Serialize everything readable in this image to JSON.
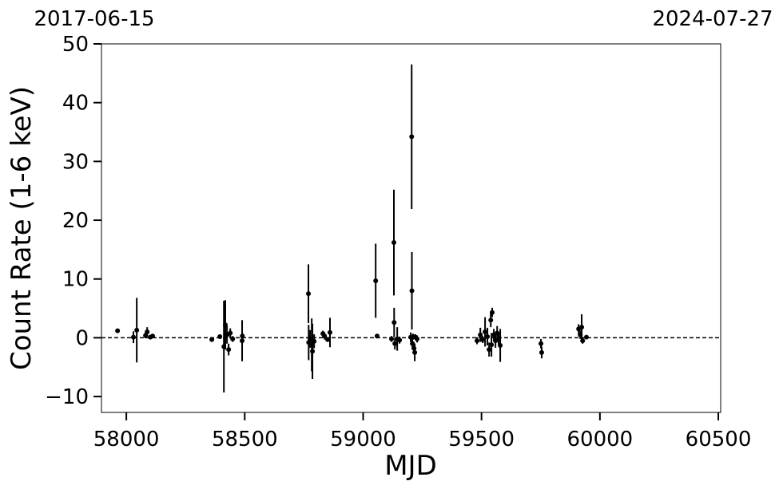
{
  "chart_data": {
    "type": "errorbar",
    "xlabel": "MJD",
    "ylabel": "Count Rate (1-6 keV)",
    "top_left_label": "2017-06-15",
    "top_right_label": "2024-07-27",
    "xlim": [
      57895,
      60510
    ],
    "ylim": [
      -12.7,
      50
    ],
    "xticks": [
      58000,
      58500,
      59000,
      59500,
      60000,
      60500
    ],
    "yticks": [
      {
        "value": -10,
        "label": "−10"
      },
      0,
      10,
      20,
      30,
      40,
      50
    ],
    "hline": 0,
    "color": "#000000",
    "x": [
      57963,
      58030,
      58044,
      58081,
      58088,
      58101,
      58111,
      58361,
      58395,
      58412,
      58418,
      58425,
      58432,
      58439,
      58449,
      58489,
      58490,
      58769,
      58770,
      58776,
      58783,
      58786,
      58793,
      58830,
      58837,
      58850,
      58860,
      59053,
      59059,
      59120,
      59130,
      59131,
      59134,
      59144,
      59154,
      59201,
      59205,
      59206,
      59208,
      59211,
      59215,
      59218,
      59221,
      59228,
      59481,
      59495,
      59505,
      59515,
      59525,
      59532,
      59539,
      59542,
      59545,
      59552,
      59559,
      59566,
      59572,
      59579,
      59751,
      59754,
      59910,
      59917,
      59923,
      59927,
      59943
    ],
    "values": [
      1.2,
      0.1,
      1.3,
      0.4,
      1.0,
      0.1,
      0.3,
      -0.3,
      0.2,
      -1.5,
      2.2,
      0.5,
      -2.0,
      0.8,
      -0.2,
      -0.5,
      0.3,
      7.5,
      -0.8,
      -0.2,
      -1.2,
      -2.3,
      -0.6,
      0.7,
      0.3,
      -0.3,
      0.9,
      9.7,
      0.3,
      -0.2,
      16.2,
      2.6,
      -1.0,
      -0.2,
      -0.4,
      0.1,
      34.2,
      8.0,
      -1.0,
      0.2,
      -1.8,
      -2.5,
      0.1,
      -0.2,
      -0.5,
      0.5,
      -0.3,
      1.0,
      0.2,
      -2.0,
      3.0,
      -1.2,
      4.3,
      0.5,
      -0.5,
      0.8,
      -0.2,
      -1.3,
      -1.0,
      -2.5,
      1.5,
      0.5,
      1.8,
      -0.5,
      0.1
    ],
    "errors": [
      0.3,
      1.0,
      5.5,
      0.5,
      0.8,
      0.3,
      0.3,
      0.4,
      0.3,
      7.8,
      4.2,
      1.5,
      1.0,
      0.8,
      0.5,
      3.5,
      0.5,
      5.0,
      3.0,
      1.5,
      4.5,
      4.7,
      1.2,
      0.5,
      0.6,
      0.4,
      2.5,
      6.3,
      0.2,
      0.5,
      9.0,
      2.5,
      1.0,
      2.0,
      0.6,
      0.8,
      12.3,
      6.6,
      1.0,
      0.5,
      1.0,
      1.5,
      0.5,
      0.6,
      0.6,
      1.2,
      0.6,
      2.5,
      1.5,
      1.2,
      1.2,
      2.0,
      0.8,
      1.0,
      1.2,
      1.2,
      1.0,
      2.8,
      0.8,
      1.0,
      0.8,
      0.7,
      2.2,
      0.5,
      0.3
    ]
  }
}
